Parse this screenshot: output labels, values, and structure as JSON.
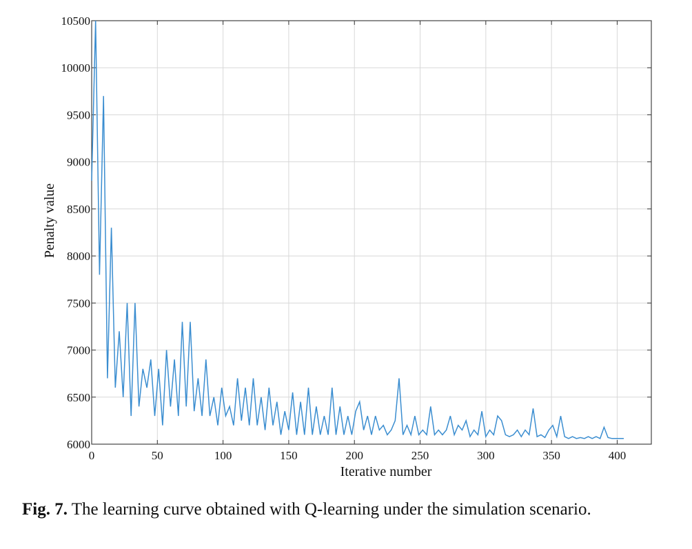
{
  "chart_data": {
    "type": "line",
    "x_label": "Iterative number",
    "y_label": "Penalty value",
    "xlim": [
      0,
      426
    ],
    "ylim": [
      6000,
      10500
    ],
    "xticks": [
      0,
      50,
      100,
      150,
      200,
      250,
      300,
      350,
      400
    ],
    "yticks": [
      6000,
      6500,
      7000,
      7500,
      8000,
      8500,
      9000,
      9500,
      10000,
      10500
    ],
    "grid": true,
    "x": [
      0,
      3,
      6,
      9,
      12,
      15,
      18,
      21,
      24,
      27,
      30,
      33,
      36,
      39,
      42,
      45,
      48,
      51,
      54,
      57,
      60,
      63,
      66,
      69,
      72,
      75,
      78,
      81,
      84,
      87,
      90,
      93,
      96,
      99,
      102,
      105,
      108,
      111,
      114,
      117,
      120,
      123,
      126,
      129,
      132,
      135,
      138,
      141,
      144,
      147,
      150,
      153,
      156,
      159,
      162,
      165,
      168,
      171,
      174,
      177,
      180,
      183,
      186,
      189,
      192,
      195,
      198,
      201,
      204,
      207,
      210,
      213,
      216,
      219,
      222,
      225,
      228,
      231,
      234,
      237,
      240,
      243,
      246,
      249,
      252,
      255,
      258,
      261,
      264,
      267,
      270,
      273,
      276,
      279,
      282,
      285,
      288,
      291,
      294,
      297,
      300,
      303,
      306,
      309,
      312,
      315,
      318,
      321,
      324,
      327,
      330,
      333,
      336,
      339,
      342,
      345,
      348,
      351,
      354,
      357,
      360,
      363,
      366,
      369,
      372,
      375,
      378,
      381,
      384,
      387,
      390,
      393,
      396,
      399,
      402,
      405
    ],
    "series": [
      {
        "color": "#3a8dd0",
        "values": [
          8800,
          10500,
          7800,
          9700,
          6700,
          8300,
          6600,
          7200,
          6500,
          7500,
          6300,
          7500,
          6400,
          6800,
          6600,
          6900,
          6300,
          6800,
          6200,
          7000,
          6400,
          6900,
          6300,
          7300,
          6400,
          7300,
          6350,
          6700,
          6300,
          6900,
          6300,
          6500,
          6200,
          6600,
          6300,
          6400,
          6200,
          6700,
          6250,
          6600,
          6200,
          6700,
          6200,
          6500,
          6150,
          6600,
          6200,
          6450,
          6100,
          6350,
          6150,
          6550,
          6100,
          6450,
          6100,
          6600,
          6100,
          6400,
          6100,
          6300,
          6100,
          6600,
          6100,
          6400,
          6100,
          6300,
          6100,
          6350,
          6450,
          6150,
          6300,
          6100,
          6300,
          6150,
          6200,
          6100,
          6150,
          6250,
          6700,
          6100,
          6200,
          6100,
          6300,
          6100,
          6150,
          6100,
          6400,
          6100,
          6150,
          6100,
          6150,
          6300,
          6100,
          6200,
          6150,
          6250,
          6080,
          6150,
          6100,
          6350,
          6080,
          6150,
          6100,
          6300,
          6250,
          6100,
          6080,
          6100,
          6150,
          6080,
          6150,
          6100,
          6380,
          6080,
          6100,
          6070,
          6150,
          6200,
          6080,
          6300,
          6080,
          6060,
          6080,
          6060,
          6070,
          6060,
          6080,
          6060,
          6080,
          6060,
          6180,
          6070,
          6060,
          6060,
          6060,
          6060
        ]
      }
    ]
  },
  "caption": {
    "label": "Fig. 7.",
    "text": "The learning curve obtained with Q-learning under the simulation scenario."
  }
}
